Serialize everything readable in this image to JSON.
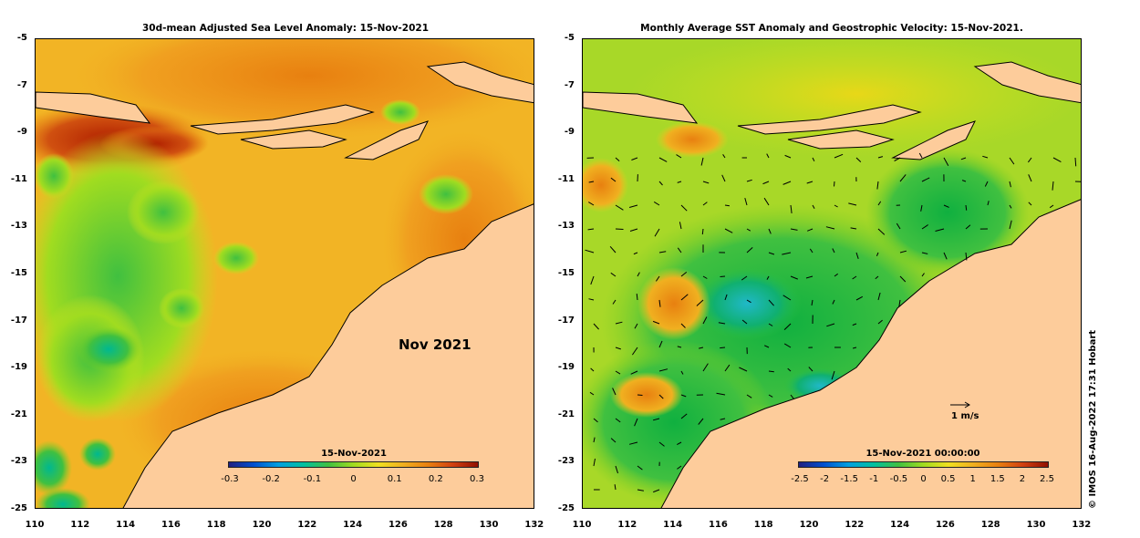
{
  "left_panel": {
    "title": "30d-mean Adjusted Sea Level Anomaly: 15-Nov-2021",
    "month_label": "Nov 2021",
    "colorbar": {
      "title": "15-Nov-2021",
      "ticks": [
        "-0.3",
        "-0.2",
        "-0.1",
        "0",
        "0.1",
        "0.2",
        "0.3"
      ]
    }
  },
  "right_panel": {
    "title": "Monthly Average SST Anomaly  and Geostrophic Velocity: 15-Nov-2021.",
    "colorbar": {
      "title": "15-Nov-2021 00:00:00",
      "ticks": [
        "-2.5",
        "-2",
        "-1.5",
        "-1",
        "-0.5",
        "0",
        "0.5",
        "1",
        "1.5",
        "2",
        "2.5"
      ]
    },
    "velocity_scale": "1 m/s"
  },
  "axes": {
    "y_ticks": [
      "-5",
      "-7",
      "-9",
      "-11",
      "-13",
      "-15",
      "-17",
      "-19",
      "-21",
      "-23",
      "-25"
    ],
    "x_ticks": [
      "110",
      "112",
      "114",
      "116",
      "118",
      "120",
      "122",
      "124",
      "126",
      "128",
      "130",
      "132"
    ]
  },
  "credit": "© IMOS 16-Aug-2022 17:31 Hobart",
  "colors": {
    "land": "#fdcc9b",
    "ocean_warm": "#f0a020",
    "ocean_cool": "#40c040"
  }
}
